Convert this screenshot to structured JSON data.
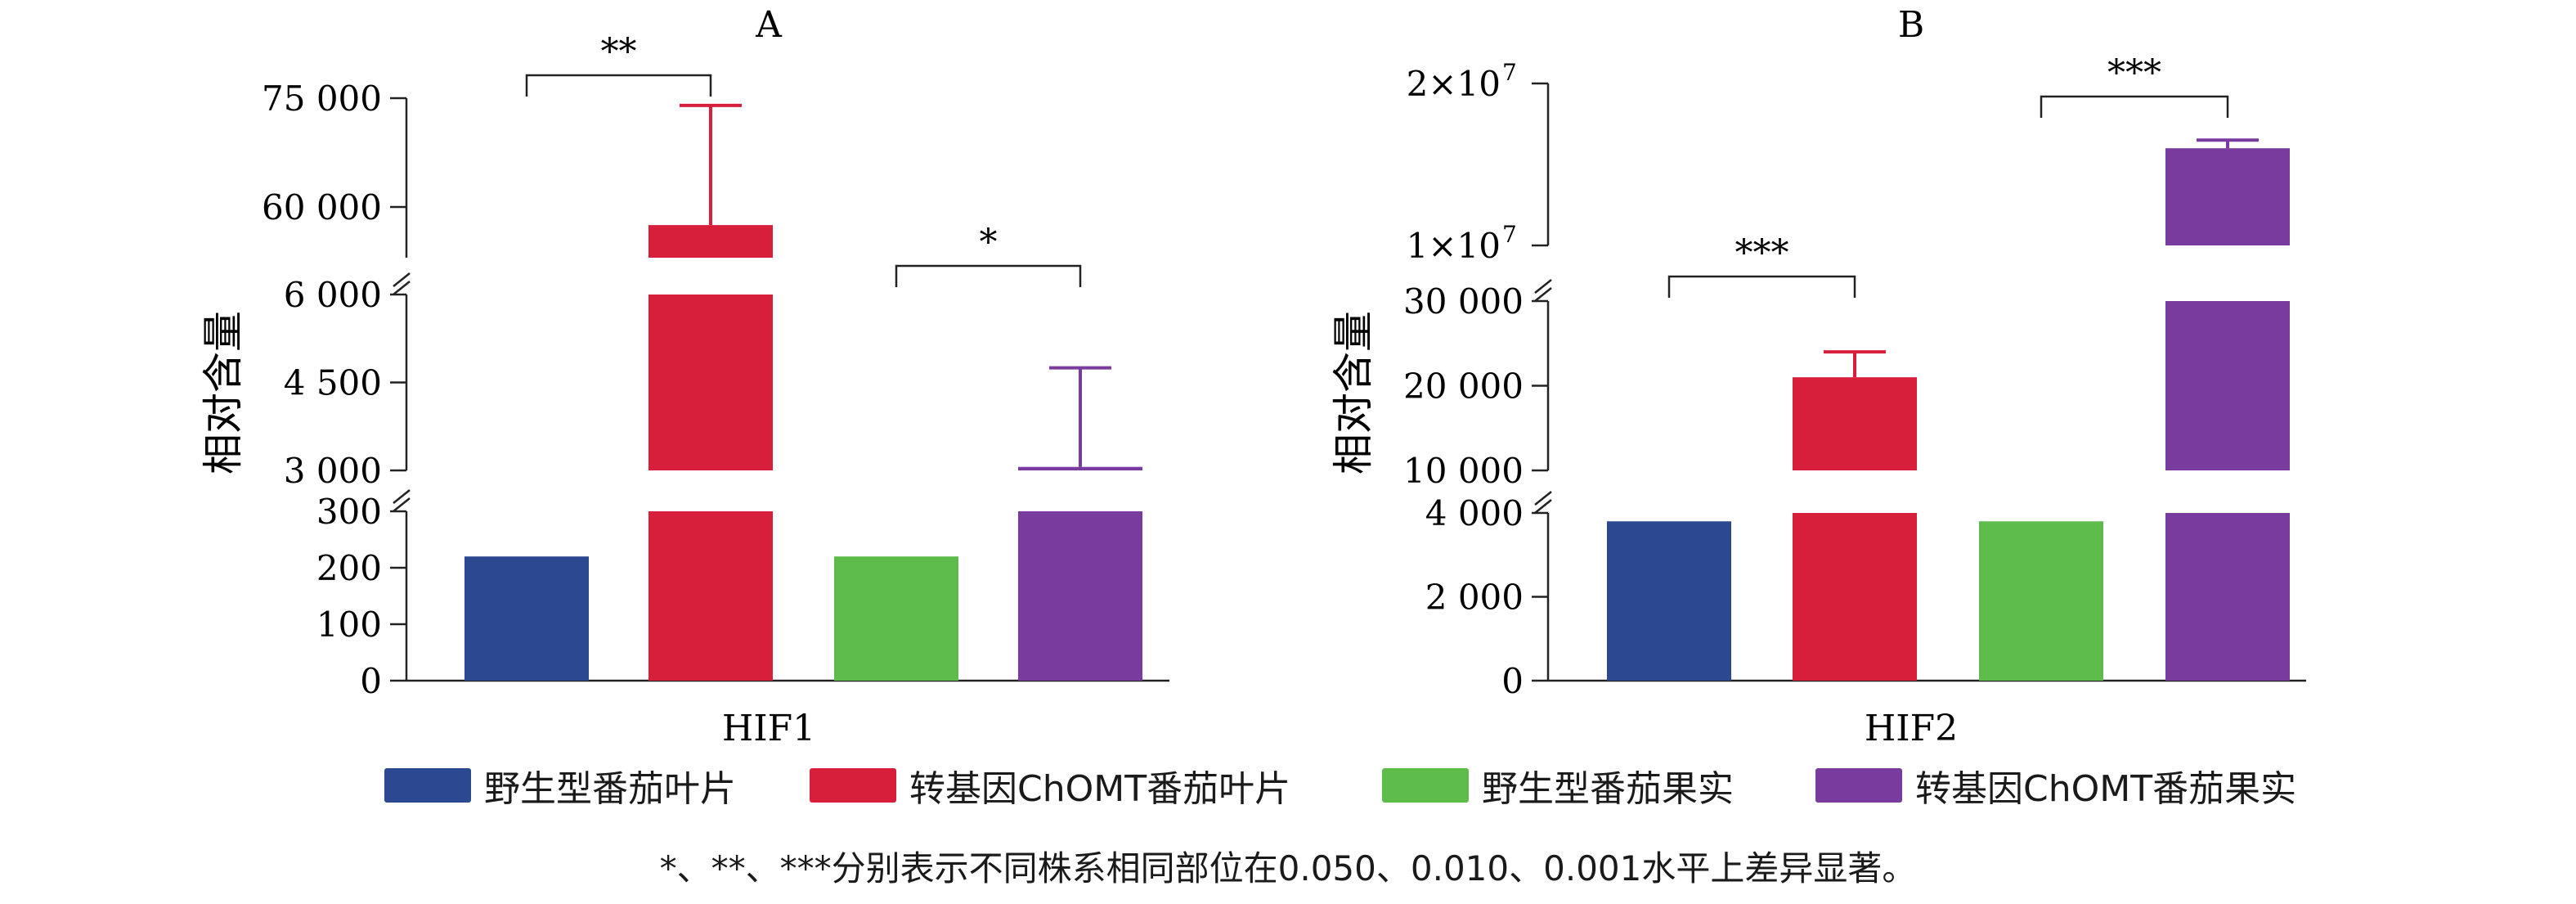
{
  "colors": {
    "wild_leaf": "#2b4890",
    "trans_leaf": "#d71e3b",
    "wild_fruit": "#5ebc4b",
    "trans_fruit": "#7a3b9e"
  },
  "legend": [
    {
      "label": "野生型番茄叶片",
      "color": "#2b4890"
    },
    {
      "label": "转基因ChOMT番茄叶片",
      "color": "#d71e3b"
    },
    {
      "label": "野生型番茄果实",
      "color": "#5ebc4b"
    },
    {
      "label": "转基因ChOMT番茄果实",
      "color": "#7a3b9e"
    }
  ],
  "footnote": "*、**、***分别表示不同株系相同部位在0.050、0.010、0.001水平上差异显著。",
  "chart_data": [
    {
      "type": "bar",
      "panel_label": "A",
      "xlabel": "HIF1",
      "ylabel": "相对含量",
      "axis_breaks": true,
      "segments": [
        {
          "ylim": [
            0,
            300
          ],
          "ticks": [
            0,
            100,
            200,
            300
          ],
          "tick_labels": [
            "0",
            "100",
            "200",
            "300"
          ]
        },
        {
          "ylim": [
            3000,
            6000
          ],
          "ticks": [
            3000,
            4500,
            6000
          ],
          "tick_labels": [
            "3 000",
            "4 500",
            "6 000"
          ]
        },
        {
          "ylim": [
            53000,
            75000
          ],
          "ticks": [
            60000,
            75000
          ],
          "tick_labels": [
            "60 000",
            "75 000"
          ]
        }
      ],
      "series": [
        {
          "name": "野生型番茄叶片",
          "value": 220,
          "error": 0
        },
        {
          "name": "转基因ChOMT番茄叶片",
          "value": 57500,
          "error": 16500
        },
        {
          "name": "野生型番茄果实",
          "value": 220,
          "error": 0
        },
        {
          "name": "转基因ChOMT番茄果实",
          "value": 3060,
          "error": 1690
        }
      ],
      "significance": [
        {
          "from": 0,
          "to": 1,
          "label": "**"
        },
        {
          "from": 2,
          "to": 3,
          "label": "*"
        }
      ]
    },
    {
      "type": "bar",
      "panel_label": "B",
      "xlabel": "HIF2",
      "ylabel": "相对含量",
      "axis_breaks": true,
      "segments": [
        {
          "ylim": [
            0,
            4000
          ],
          "ticks": [
            0,
            2000,
            4000
          ],
          "tick_labels": [
            "0",
            "2 000",
            "4 000"
          ]
        },
        {
          "ylim": [
            10000,
            30000
          ],
          "ticks": [
            10000,
            20000,
            30000
          ],
          "tick_labels": [
            "10 000",
            "20 000",
            "30 000"
          ]
        },
        {
          "ylim": [
            10000000,
            20000000
          ],
          "ticks": [
            10000000,
            20000000
          ],
          "tick_labels": [
            "1×10",
            "2×10"
          ],
          "tick_exponent": "7"
        }
      ],
      "series": [
        {
          "name": "野生型番茄叶片",
          "value": 3800,
          "error": 0
        },
        {
          "name": "转基因ChOMT番茄叶片",
          "value": 21000,
          "error": 3000
        },
        {
          "name": "野生型番茄果实",
          "value": 3800,
          "error": 0
        },
        {
          "name": "转基因ChOMT番茄果实",
          "value": 16000000,
          "error": 500000
        }
      ],
      "significance": [
        {
          "from": 0,
          "to": 1,
          "label": "***"
        },
        {
          "from": 2,
          "to": 3,
          "label": "***"
        }
      ]
    }
  ]
}
